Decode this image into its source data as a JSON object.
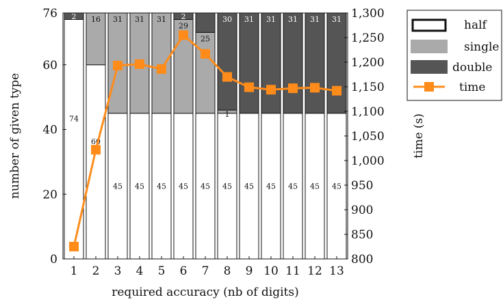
{
  "chart_data": {
    "type": "bar",
    "stacked": true,
    "categories": [
      "1",
      "2",
      "3",
      "4",
      "5",
      "6",
      "7",
      "8",
      "9",
      "10",
      "11",
      "12",
      "13"
    ],
    "series": [
      {
        "name": "half",
        "values": [
          74,
          60,
          45,
          45,
          45,
          45,
          45,
          45,
          45,
          45,
          45,
          45,
          45
        ],
        "color": "#ffffff"
      },
      {
        "name": "single",
        "values": [
          0,
          16,
          31,
          31,
          31,
          29,
          25,
          1,
          0,
          0,
          0,
          0,
          0
        ],
        "color": "#aaaaaa"
      },
      {
        "name": "double",
        "values": [
          2,
          0,
          0,
          0,
          0,
          2,
          6,
          30,
          31,
          31,
          31,
          31,
          31
        ],
        "color": "#555555"
      }
    ],
    "bar_labels": {
      "half": [
        "74",
        "60",
        "45",
        "45",
        "45",
        "45",
        "45",
        "45",
        "45",
        "45",
        "45",
        "45",
        "45"
      ],
      "single": [
        "",
        "16",
        "31",
        "31",
        "31",
        "29",
        "25",
        "1",
        "",
        "",
        "",
        "",
        ""
      ],
      "double": [
        "2",
        "",
        "",
        "",
        "",
        "2",
        "",
        "30",
        "31",
        "31",
        "31",
        "31",
        "31"
      ]
    },
    "line_series": {
      "name": "time",
      "values": [
        825,
        1022,
        1193,
        1196,
        1186,
        1255,
        1217,
        1170,
        1149,
        1144,
        1147,
        1148,
        1142
      ],
      "color": "#ff8c1a"
    },
    "xlabel": "required accuracy (nb of digits)",
    "ylabel": "number of given type",
    "y2label": "time (s)",
    "ylim": [
      0,
      76
    ],
    "y2lim": [
      800,
      1300
    ],
    "yticks": [
      0,
      20,
      40,
      60,
      76
    ],
    "y2ticks": [
      800,
      850,
      900,
      950,
      1000,
      1050,
      1100,
      1150,
      1200,
      1250,
      1300
    ],
    "y2tick_labels": [
      "800",
      "850",
      "900",
      "950",
      "1,000",
      "1,050",
      "1,100",
      "1,150",
      "1,200",
      "1,250",
      "1,300"
    ],
    "grid": false,
    "legend_position": "top-right"
  }
}
